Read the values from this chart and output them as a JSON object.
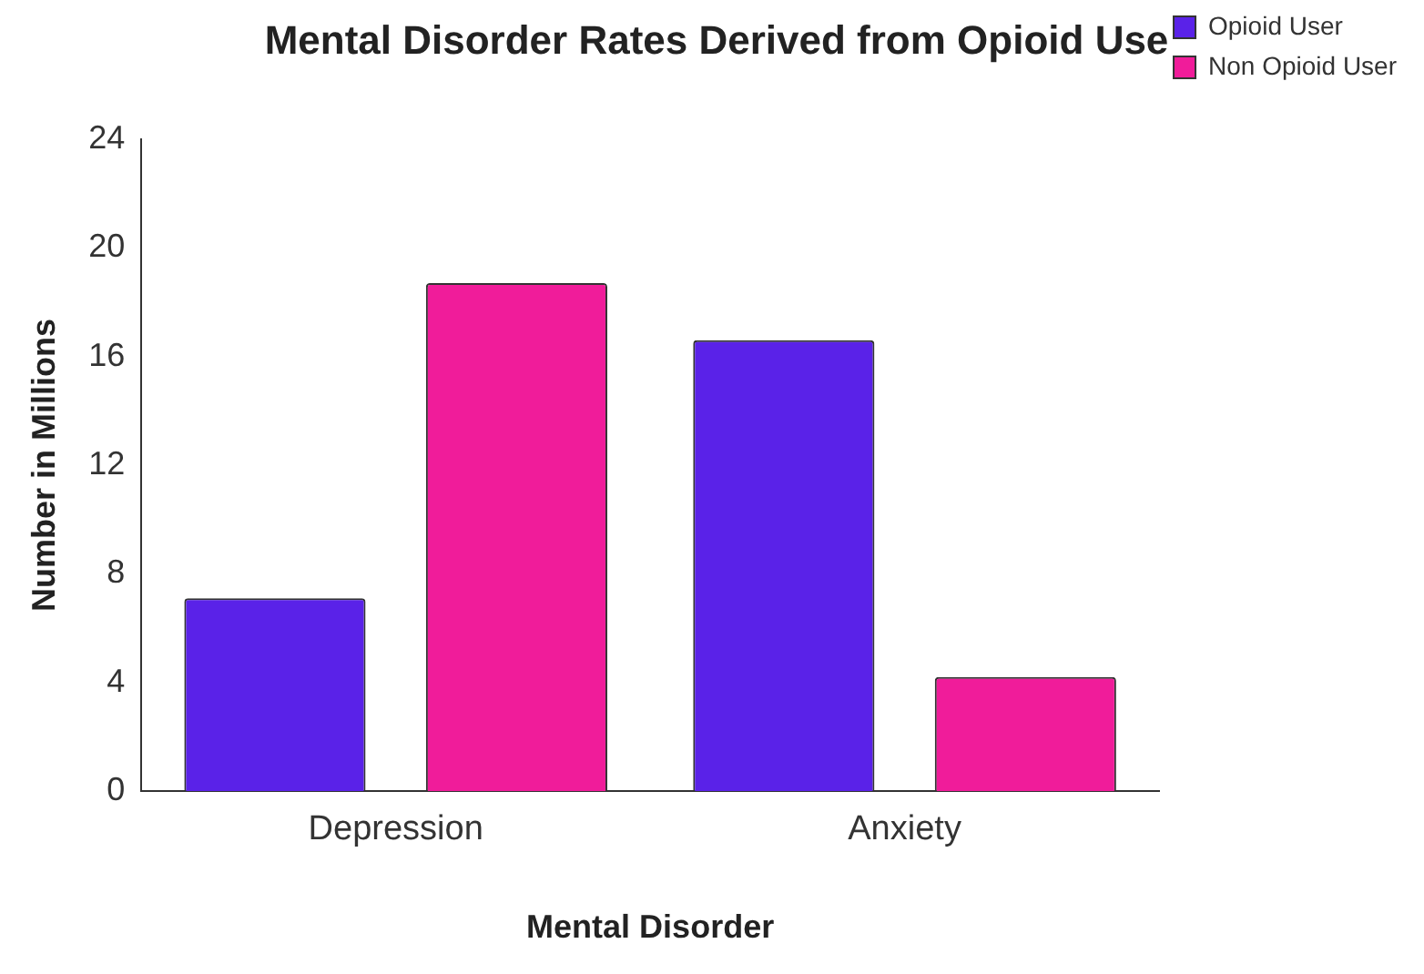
{
  "chart_data": {
    "type": "bar",
    "title": "Mental Disorder Rates Derived from Opioid Use",
    "xlabel": "Mental Disorder",
    "ylabel": "Number in Millions",
    "categories": [
      "Depression",
      "Anxiety"
    ],
    "series": [
      {
        "name": "Opioid User",
        "color": "#5a22e8",
        "values": [
          7.1,
          16.6
        ]
      },
      {
        "name": "Non Opioid User",
        "color": "#f01c9a",
        "values": [
          18.7,
          4.2
        ]
      }
    ],
    "ylim": [
      0,
      24
    ],
    "yticks": [
      0,
      4,
      8,
      12,
      16,
      20,
      24
    ],
    "grid": false,
    "legend": "top right"
  }
}
